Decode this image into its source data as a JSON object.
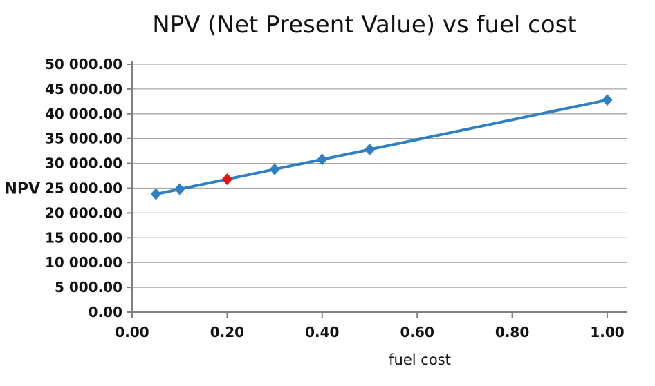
{
  "title": "NPV (Net Present Value) vs fuel cost",
  "colors": {
    "series_blue": "#2e7fc4",
    "highlight_red": "#ee1111",
    "gridline_gray": "#a6a6a6",
    "axis_gray": "#808080",
    "text_black": "#111111",
    "background": "#ffffff"
  },
  "chart_data": {
    "type": "line",
    "title": "NPV (Net Present Value) vs fuel cost",
    "xlabel": "fuel cost",
    "ylabel": "NPV",
    "x": [
      0.05,
      0.1,
      0.2,
      0.3,
      0.4,
      0.5,
      1.0
    ],
    "values": [
      23800,
      24800,
      26800,
      28800,
      30800,
      32800,
      42800
    ],
    "series_name": "NPV",
    "marker": "diamond",
    "line_color": "#2e7fc4",
    "highlighted_point": {
      "x": 0.2,
      "value": 26800,
      "color": "#ee1111"
    },
    "xlim": [
      0,
      1.04
    ],
    "ylim": [
      0,
      50000
    ],
    "x_ticks": [
      0.0,
      0.2,
      0.4,
      0.6,
      0.8,
      1.0
    ],
    "x_tick_labels": [
      "0.00",
      "0.20",
      "0.40",
      "0.60",
      "0.80",
      "1.00"
    ],
    "y_ticks": [
      0,
      5000,
      10000,
      15000,
      20000,
      25000,
      30000,
      35000,
      40000,
      45000,
      50000
    ],
    "y_tick_labels": [
      "0.00",
      "5 000.00",
      "10 000.00",
      "15 000.00",
      "20 000.00",
      "25 000.00",
      "30 000.00",
      "35 000.00",
      "40 000.00",
      "45 000.00",
      "50 000.00"
    ],
    "grid": "horizontal",
    "legend": "none"
  }
}
